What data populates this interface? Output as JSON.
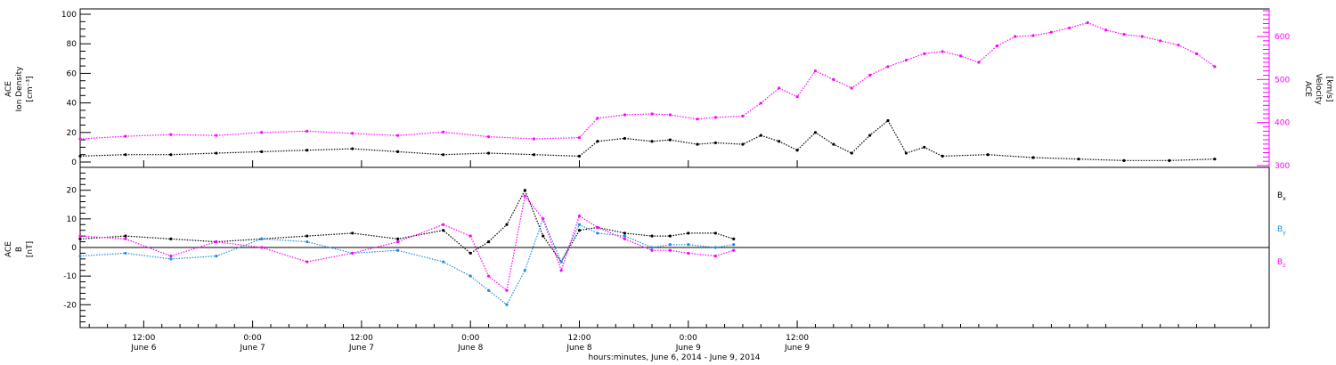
{
  "chart_data": [
    {
      "type": "scatter",
      "panel": "top",
      "title": "",
      "ylabel": [
        "ACE",
        "Ion Density",
        "[cm⁻³]"
      ],
      "ylim": [
        0,
        100
      ],
      "yticks": [
        0,
        20,
        40,
        60,
        80,
        100
      ],
      "y2label": [
        "ACE",
        "Velocity",
        "[km/s]"
      ],
      "y2lim": [
        300,
        660
      ],
      "y2ticks": [
        300,
        400,
        500,
        600
      ],
      "x_unit": "hours since 2014-06-06 00:00",
      "xlim": [
        5.0,
        136.0
      ],
      "series": [
        {
          "name": "Ion Density",
          "axis": "left",
          "color": "#000000",
          "x": [
            5,
            10,
            15,
            20,
            25,
            30,
            35,
            40,
            45,
            50,
            55,
            60,
            62,
            65,
            68,
            70,
            73,
            75,
            78,
            80,
            82,
            84,
            86,
            88,
            90,
            92,
            94,
            96,
            98,
            100,
            105,
            110,
            115,
            120,
            125,
            130
          ],
          "y": [
            4,
            5,
            5,
            6,
            7,
            8,
            9,
            7,
            5,
            6,
            5,
            4,
            14,
            16,
            14,
            15,
            12,
            13,
            12,
            18,
            14,
            8,
            20,
            12,
            6,
            18,
            28,
            6,
            10,
            4,
            5,
            3,
            2,
            1,
            1,
            2
          ]
        },
        {
          "name": "Velocity",
          "axis": "right",
          "color": "#ff00ff",
          "x": [
            5,
            10,
            15,
            20,
            25,
            30,
            35,
            40,
            45,
            50,
            55,
            60,
            62,
            65,
            68,
            70,
            73,
            75,
            78,
            80,
            82,
            84,
            86,
            88,
            90,
            92,
            94,
            96,
            98,
            100,
            102,
            104,
            106,
            108,
            110,
            112,
            114,
            116,
            118,
            120,
            122,
            124,
            126,
            128,
            130
          ],
          "y": [
            362,
            368,
            372,
            370,
            377,
            380,
            375,
            370,
            378,
            367,
            362,
            365,
            410,
            418,
            420,
            418,
            408,
            412,
            415,
            445,
            480,
            460,
            520,
            500,
            480,
            510,
            530,
            545,
            560,
            565,
            555,
            540,
            578,
            600,
            602,
            610,
            620,
            632,
            615,
            605,
            600,
            590,
            580,
            560,
            530
          ]
        }
      ]
    },
    {
      "type": "scatter",
      "panel": "bottom",
      "title": "",
      "ylabel": [
        "ACE",
        "B",
        "[nT]"
      ],
      "ylim": [
        -28,
        28
      ],
      "yticks": [
        -20,
        -10,
        0,
        10,
        20
      ],
      "zero_line": true,
      "x_unit": "hours since 2014-06-06 00:00",
      "xlim": [
        5.0,
        136.0
      ],
      "xlabel": "hours:minutes, June  6, 2014 - June  9, 2014",
      "xticks": [
        {
          "x": 12,
          "time": "12:00",
          "date": "June 6"
        },
        {
          "x": 24,
          "time": "0:00",
          "date": "June 7"
        },
        {
          "x": 36,
          "time": "12:00",
          "date": "June 7"
        },
        {
          "x": 48,
          "time": "0:00",
          "date": "June 8"
        },
        {
          "x": 60,
          "time": "12:00",
          "date": "June 8"
        },
        {
          "x": 72,
          "time": "0:00",
          "date": "June 9"
        },
        {
          "x": 84,
          "time": "12:00",
          "date": "June 9"
        }
      ],
      "series": [
        {
          "name": "B",
          "sub": "x",
          "color": "#000000",
          "x": [
            5,
            10,
            15,
            20,
            25,
            30,
            35,
            40,
            45,
            48,
            50,
            52,
            54,
            56,
            58,
            60,
            62,
            65,
            68,
            70,
            72,
            75,
            77
          ],
          "y": [
            3,
            4,
            3,
            2,
            3,
            4,
            5,
            3,
            6,
            -2,
            2,
            8,
            20,
            4,
            -5,
            6,
            7,
            5,
            4,
            4,
            5,
            5,
            3
          ]
        },
        {
          "name": "B",
          "sub": "y",
          "color": "#1e8fdc",
          "x": [
            5,
            10,
            15,
            20,
            25,
            30,
            35,
            40,
            45,
            48,
            50,
            52,
            54,
            56,
            58,
            60,
            62,
            65,
            68,
            70,
            72,
            75,
            77
          ],
          "y": [
            -3,
            -2,
            -4,
            -3,
            3,
            2,
            -2,
            -1,
            -5,
            -10,
            -15,
            -20,
            -8,
            10,
            -5,
            8,
            5,
            4,
            0,
            1,
            1,
            0,
            1
          ]
        },
        {
          "name": "B",
          "sub": "z",
          "color": "#ff00ff",
          "x": [
            5,
            10,
            15,
            20,
            25,
            30,
            35,
            40,
            45,
            48,
            50,
            52,
            54,
            56,
            58,
            60,
            62,
            65,
            68,
            70,
            72,
            75,
            77
          ],
          "y": [
            4,
            3,
            -3,
            2,
            0,
            -5,
            -2,
            2,
            8,
            4,
            -10,
            -15,
            18,
            10,
            -8,
            11,
            7,
            3,
            -1,
            -1,
            -2,
            -3,
            -1
          ]
        }
      ]
    }
  ]
}
